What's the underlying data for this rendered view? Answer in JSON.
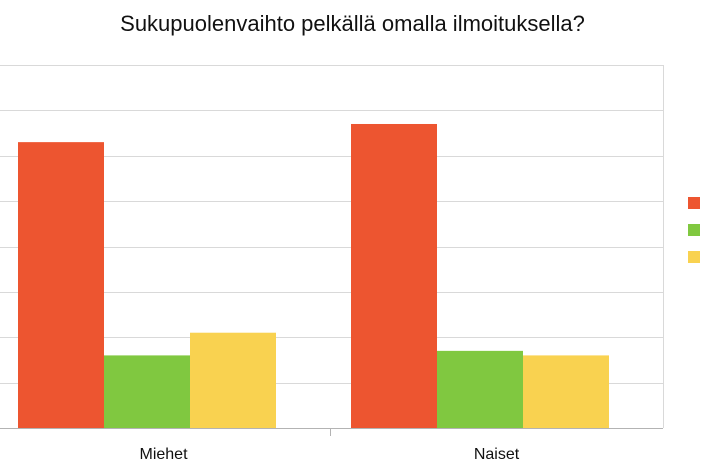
{
  "chart_data": {
    "type": "bar",
    "title": "Sukupuolenvaihto pelkällä omalla ilmoituksella?",
    "categories": [
      "Miehet",
      "Naiset"
    ],
    "series": [
      {
        "values": [
          63,
          67
        ],
        "color": "#ed5530"
      },
      {
        "values": [
          16,
          17
        ],
        "color": "#80c840"
      },
      {
        "values": [
          21,
          16
        ],
        "color": "#f9d250"
      }
    ],
    "ylim": [
      0,
      80
    ],
    "grid": true,
    "legend_position": "right"
  }
}
